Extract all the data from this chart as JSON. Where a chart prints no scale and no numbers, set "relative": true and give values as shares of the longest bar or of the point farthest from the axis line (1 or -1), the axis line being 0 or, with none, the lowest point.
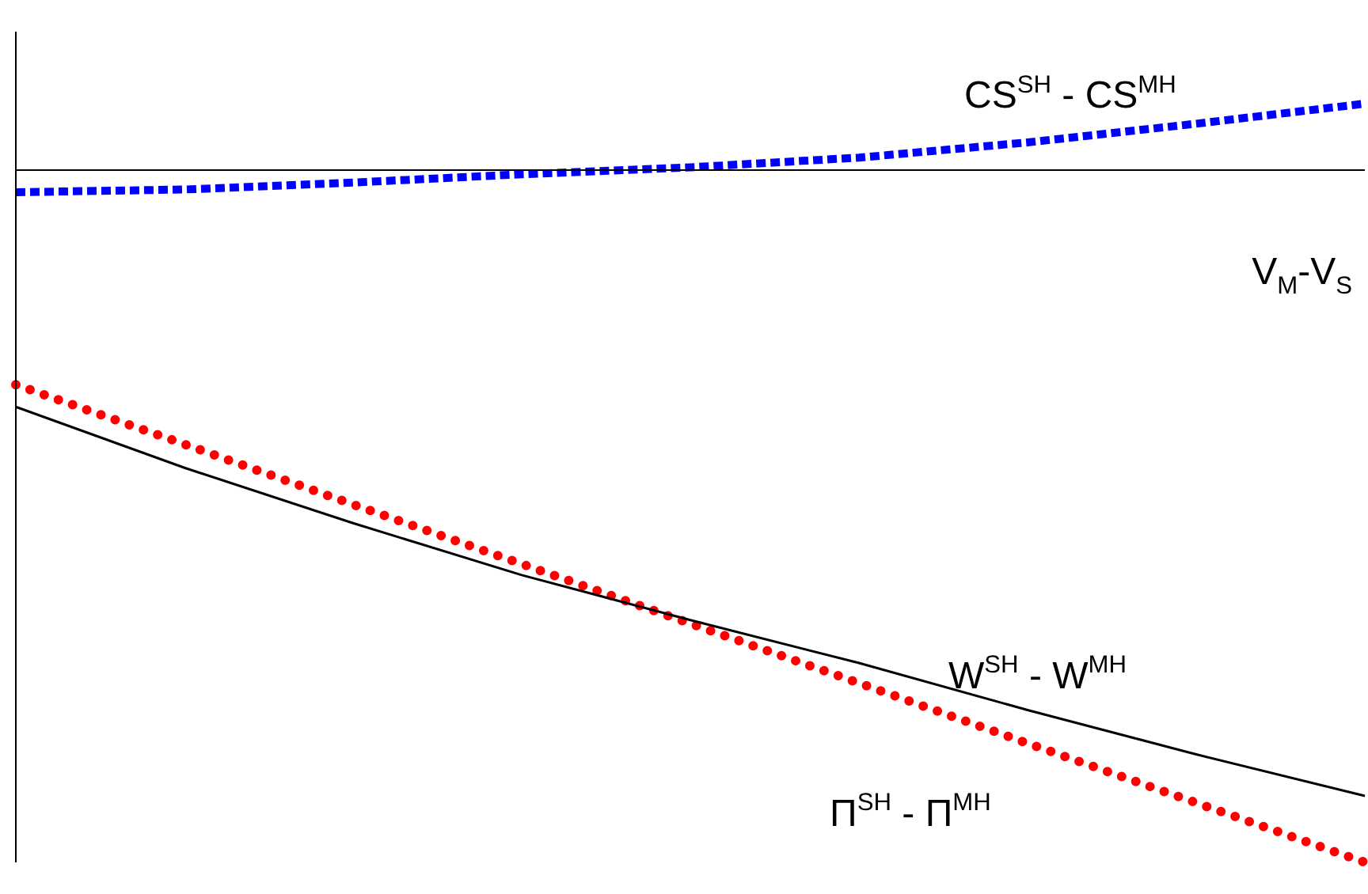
{
  "chart_data": {
    "type": "line",
    "relative": true,
    "xlabel": "V$_{M}$-V$_{S}$",
    "legend": false,
    "categories": [
      null,
      null,
      null,
      null,
      null,
      null,
      null,
      null,
      null
    ],
    "series": [
      {
        "name": "CS$^{SH}$ - CS$^{MH}$",
        "color": "#0000ff",
        "line_style": "dashed",
        "values": [
          -0.032,
          -0.028,
          -0.018,
          -0.006,
          0.004,
          0.018,
          0.04,
          0.067,
          0.096
        ]
      },
      {
        "name": "W$^{SH}$ - W$^{MH}$",
        "color": "#000000",
        "line_style": "solid",
        "values": [
          -0.342,
          -0.43,
          -0.51,
          -0.585,
          -0.65,
          -0.712,
          -0.78,
          -0.844,
          -0.904
        ]
      },
      {
        "name": "Π$^{SH}$ - Π$^{MH}$",
        "color": "#ff0000",
        "line_style": "dotted",
        "values": [
          -0.31,
          -0.396,
          -0.483,
          -0.569,
          -0.655,
          -0.741,
          -0.828,
          -0.914,
          -1
        ]
      }
    ]
  }
}
